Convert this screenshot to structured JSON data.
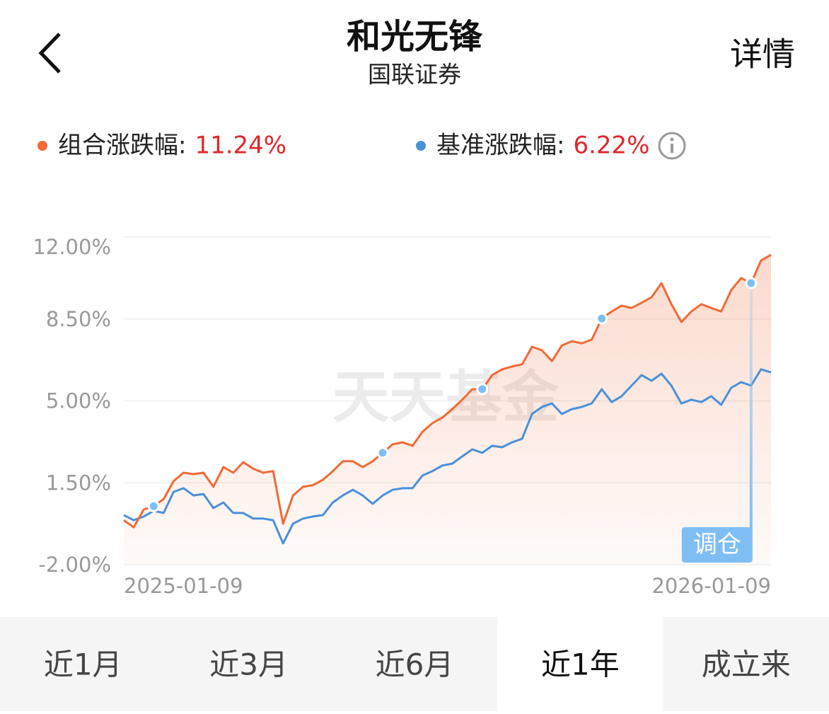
{
  "header": {
    "title": "和光无锋",
    "subtitle": "国联证券",
    "action": "详情"
  },
  "chart_data": {
    "type": "line",
    "categories": [
      "2025-01-09",
      null,
      null,
      null,
      null,
      null,
      null,
      null,
      null,
      null,
      null,
      null,
      null,
      null,
      null,
      null,
      null,
      null,
      null,
      null,
      null,
      null,
      null,
      null,
      null,
      null,
      null,
      null,
      null,
      null,
      null,
      null,
      null,
      null,
      null,
      null,
      null,
      null,
      null,
      null,
      null,
      null,
      null,
      null,
      null,
      null,
      null,
      null,
      null,
      null,
      null,
      null,
      null,
      null,
      null,
      null,
      null,
      null,
      null,
      null,
      null,
      null,
      null,
      null,
      null,
      "2026-01-09"
    ],
    "series": [
      {
        "name": "组合涨跌幅:",
        "color": "#f06a35",
        "latest": {
          "value": 11.24,
          "label": "11.24%"
        },
        "values": [
          -0.1,
          -0.4,
          0.36,
          0.5,
          0.8,
          1.57,
          1.93,
          1.87,
          1.93,
          1.33,
          2.17,
          1.93,
          2.38,
          2.1,
          1.93,
          2.0,
          -0.25,
          0.96,
          1.33,
          1.4,
          1.63,
          2.0,
          2.42,
          2.42,
          2.17,
          2.42,
          2.78,
          3.14,
          3.23,
          3.08,
          3.68,
          4.05,
          4.29,
          4.65,
          5.05,
          5.5,
          5.5,
          6.1,
          6.35,
          6.47,
          6.56,
          7.31,
          7.16,
          6.7,
          7.37,
          7.55,
          7.46,
          7.62,
          8.52,
          8.82,
          9.07,
          8.97,
          9.19,
          9.43,
          10.03,
          9.13,
          8.37,
          8.82,
          9.13,
          8.97,
          8.82,
          9.73,
          10.25,
          10.03,
          11.0,
          11.24
        ]
      },
      {
        "name": "基准涨跌幅:",
        "color": "#4a90d9",
        "latest": {
          "value": 6.22,
          "label": "6.22%"
        },
        "values": [
          0.12,
          -0.1,
          0.06,
          0.3,
          0.21,
          1.11,
          1.27,
          0.96,
          1.02,
          0.42,
          0.66,
          0.21,
          0.21,
          -0.03,
          -0.03,
          -0.1,
          -1.09,
          -0.25,
          -0.03,
          0.06,
          0.12,
          0.66,
          0.96,
          1.2,
          0.96,
          0.6,
          0.96,
          1.2,
          1.27,
          1.27,
          1.81,
          2.0,
          2.24,
          2.32,
          2.63,
          2.93,
          2.78,
          3.08,
          3.02,
          3.23,
          3.38,
          4.44,
          4.74,
          4.89,
          4.44,
          4.65,
          4.74,
          4.89,
          5.5,
          4.95,
          5.2,
          5.65,
          6.1,
          5.86,
          6.16,
          5.65,
          4.89,
          5.05,
          4.95,
          5.2,
          4.83,
          5.56,
          5.8,
          5.65,
          6.35,
          6.22
        ]
      }
    ],
    "ylim": [
      -2,
      12
    ],
    "yticks": [
      {
        "value": -2,
        "label": "-2.00%"
      },
      {
        "value": 1.5,
        "label": "1.50%"
      },
      {
        "value": 5,
        "label": "5.00%"
      },
      {
        "value": 8.5,
        "label": "8.50%"
      },
      {
        "value": 12,
        "label": "12.00%"
      }
    ],
    "grid": true,
    "rebalance_points": [
      3,
      26,
      36,
      48,
      63
    ],
    "annotation": "调仓",
    "watermark": "天天基金"
  },
  "tabs": {
    "items": [
      "近1月",
      "近3月",
      "近6月",
      "近1年",
      "成立来"
    ],
    "active": 3
  }
}
